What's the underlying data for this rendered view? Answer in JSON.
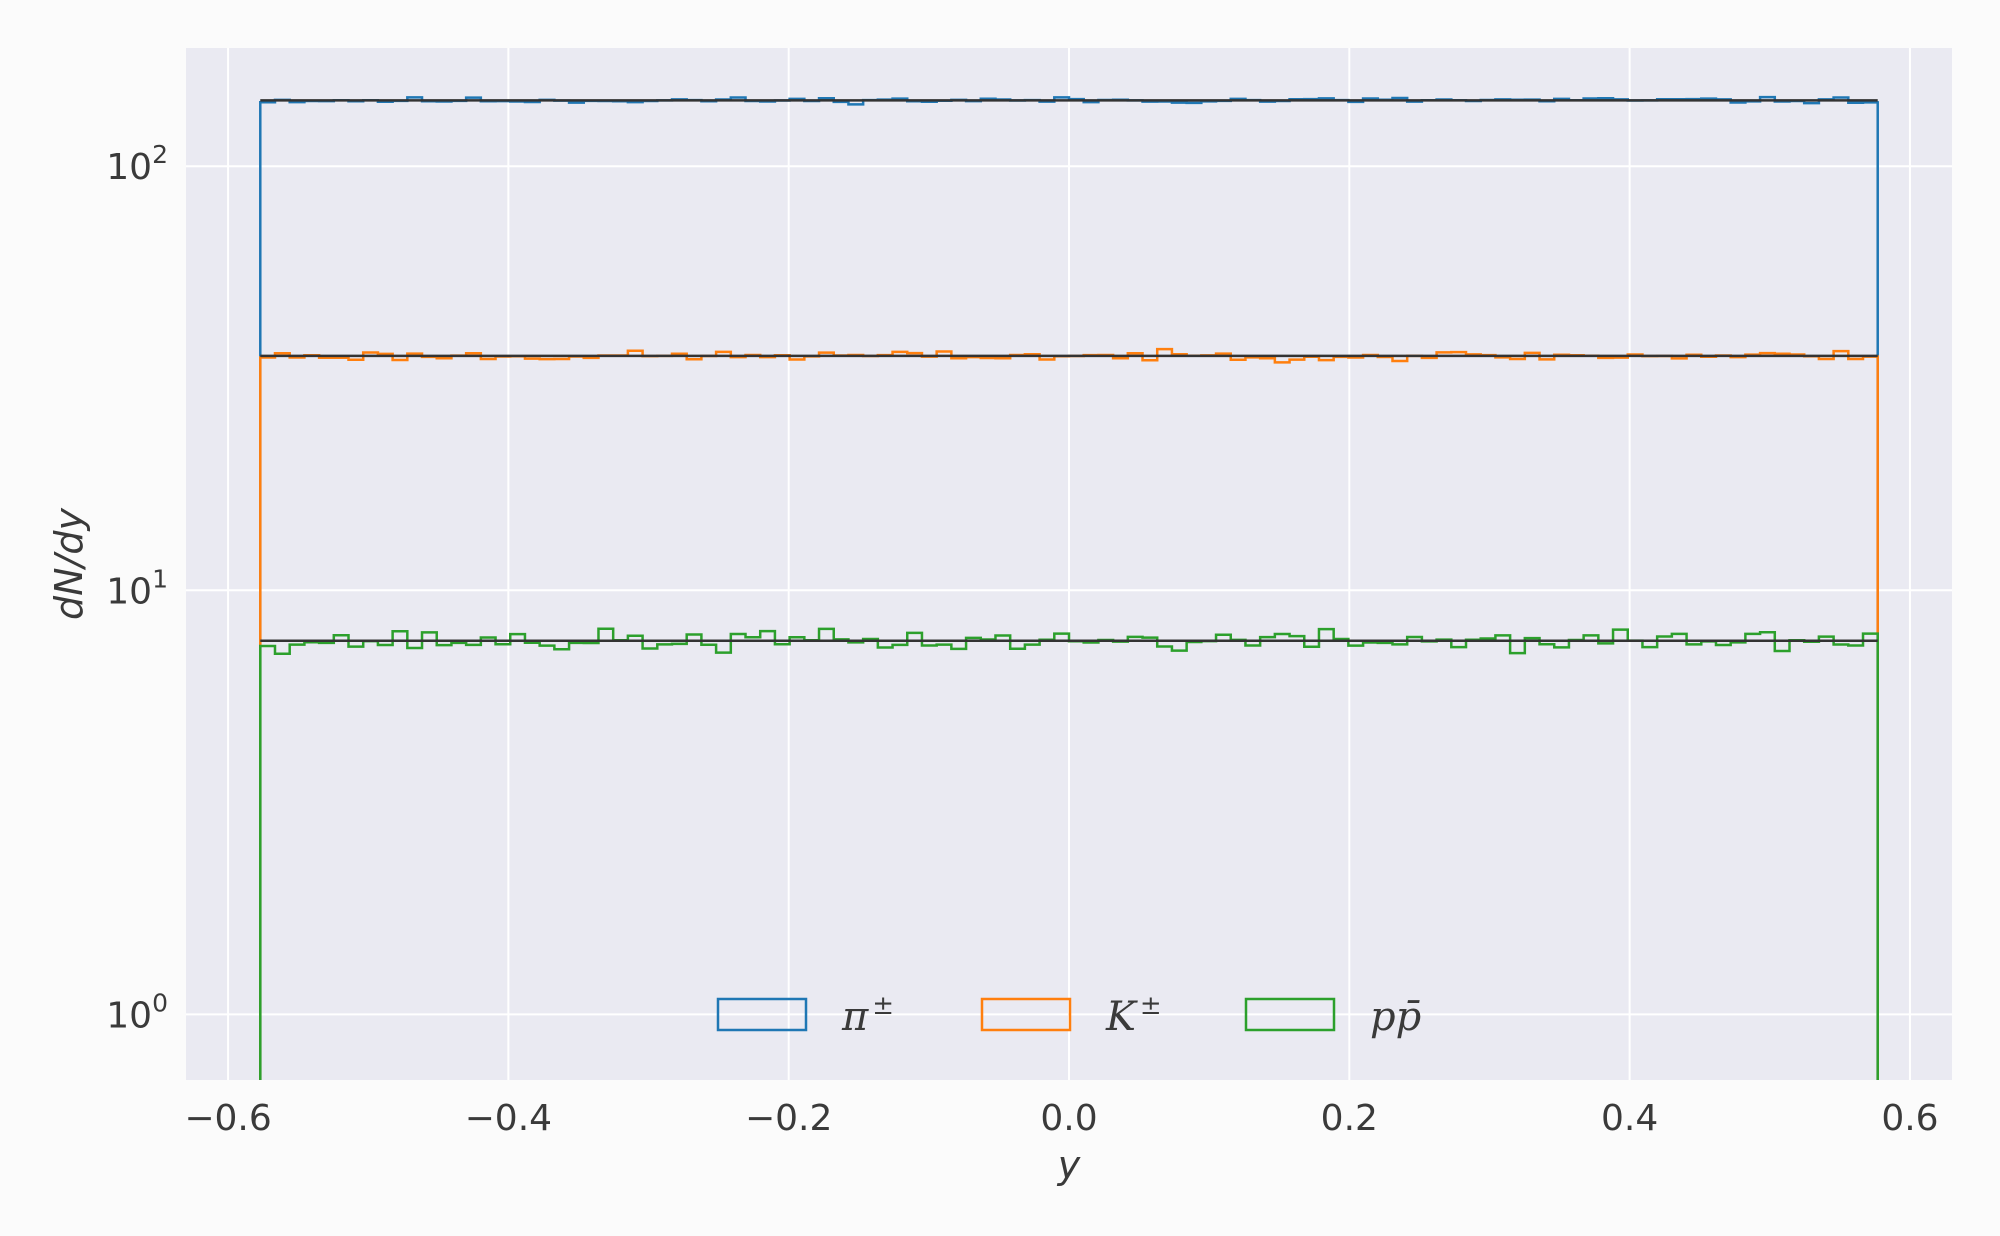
{
  "chart_data": {
    "type": "histogram",
    "title": "",
    "xlabel": "y",
    "ylabel": "dN/dy",
    "xlim": [
      -0.63,
      0.63
    ],
    "ylim": [
      0.7,
      190
    ],
    "yscale": "log",
    "grid": true,
    "legend_position": "bottom-center",
    "x_ticks": [
      "−0.6",
      "−0.4",
      "−0.2",
      "0.0",
      "0.2",
      "0.4",
      "0.6"
    ],
    "x_tick_values": [
      -0.6,
      -0.4,
      -0.2,
      0.0,
      0.2,
      0.4,
      0.6
    ],
    "y_ticks": [
      {
        "value": 1,
        "base": "10",
        "exp": "0"
      },
      {
        "value": 10,
        "base": "10",
        "exp": "1"
      },
      {
        "value": 100,
        "base": "10",
        "exp": "2"
      }
    ],
    "bin_range": [
      -0.577,
      0.577
    ],
    "bins": 110,
    "series": [
      {
        "name_main": "π",
        "name_sup": "±",
        "color": "#1f77b4",
        "mean": 143,
        "fit": 143,
        "noise": 0.012,
        "seed": 11
      },
      {
        "name_main": "K",
        "name_sup": "±",
        "color": "#ff7f0e",
        "mean": 35.7,
        "fit": 35.7,
        "noise": 0.02,
        "seed": 23
      },
      {
        "name_main": "pp̄",
        "name_sup": "",
        "color": "#2ca02c",
        "mean": 7.6,
        "fit": 7.6,
        "noise": 0.045,
        "seed": 37
      }
    ],
    "fit_line_color": "#333333"
  }
}
